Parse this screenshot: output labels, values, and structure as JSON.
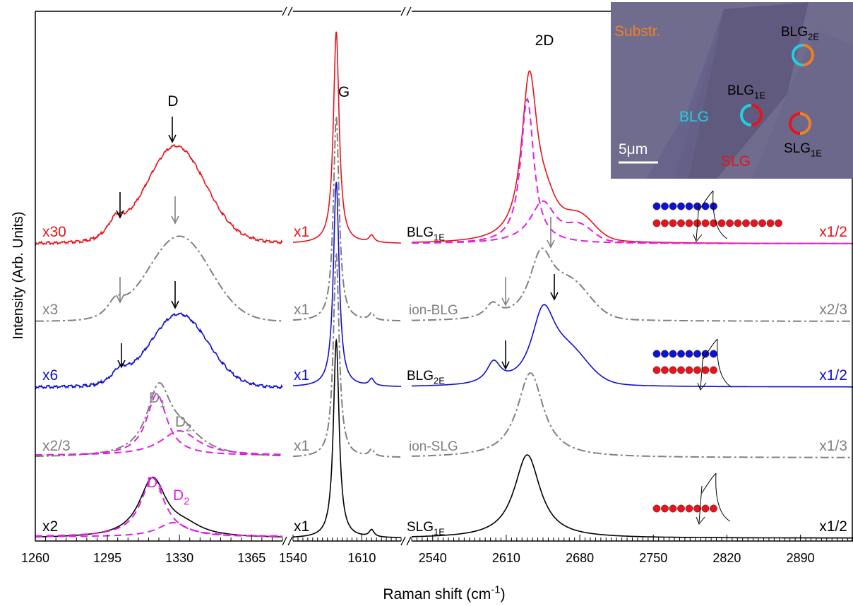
{
  "chart_data": {
    "type": "line",
    "title": "",
    "xlabel": "Raman shift (cm",
    "xlabel_sup": "-1",
    "xlabel_close": ")",
    "ylabel": "Intensity (Arb. Units)",
    "colors": {
      "red": "#e8131b",
      "gray": "#808080",
      "blue": "#1010d0",
      "black": "#000000",
      "magenta": "#e020e0",
      "orange": "#f08020",
      "cyan": "#20d0e0",
      "inset_bg": "#6f6c8e"
    },
    "x_segments": [
      {
        "range": [
          1260,
          1380
        ],
        "ticks": [
          "1260",
          "1295",
          "1330",
          "1365"
        ]
      },
      {
        "range": [
          1540,
          1650
        ],
        "ticks": [
          "1540",
          "1610"
        ]
      },
      {
        "range": [
          2520,
          2940
        ],
        "ticks": [
          "2540",
          "2610",
          "2680",
          "2750",
          "2820",
          "2890"
        ]
      }
    ],
    "peak_labels": {
      "D": "D",
      "G": "G",
      "2D": "2D"
    },
    "series": [
      {
        "key": "slg1e",
        "label": "SLG",
        "label_sub": "1E",
        "style": "solid",
        "color": "black",
        "scales": [
          "x2",
          "x1",
          "x1/2"
        ]
      },
      {
        "key": "ionslg",
        "label": "ion-SLG",
        "label_sub": "",
        "style": "dashdot",
        "color": "gray",
        "scales": [
          "x2/3",
          "x1",
          "x1/3"
        ]
      },
      {
        "key": "blg2e",
        "label": "BLG",
        "label_sub": "2E",
        "style": "solid",
        "color": "blue",
        "scales": [
          "x6",
          "x1",
          "x1/2"
        ]
      },
      {
        "key": "ionblg",
        "label": "ion-BLG",
        "label_sub": "",
        "style": "dashdot",
        "color": "gray",
        "scales": [
          "x3",
          "x1",
          "x2/3"
        ]
      },
      {
        "key": "blg1e",
        "label": "BLG",
        "label_sub": "1E",
        "style": "solid",
        "color": "red",
        "scales": [
          "x30",
          "x1",
          "x1/2"
        ]
      }
    ],
    "component_labels": [
      {
        "text": "D",
        "sub": "1",
        "color": "gray"
      },
      {
        "text": "D",
        "sub": "2",
        "color": "gray"
      },
      {
        "text": "D",
        "sub": "1",
        "color": "magenta"
      },
      {
        "text": "D",
        "sub": "2",
        "color": "magenta"
      }
    ],
    "peak_positions": {
      "D_SLG1E": 1318,
      "D_BLG": 1329,
      "G": 1584,
      "2D_SLG": 2630,
      "2D_BLG1E_main": 2632,
      "2D_BLG2E_main": 2645,
      "2D_side": 2600
    }
  },
  "inset": {
    "labels": [
      {
        "text": "Substr.",
        "sub": "",
        "color": "orange"
      },
      {
        "text": "BLG",
        "sub": "2E",
        "color": "black"
      },
      {
        "text": "BLG",
        "sub": "1E",
        "color": "black"
      },
      {
        "text": "BLG",
        "sub": "",
        "color": "cyan"
      },
      {
        "text": "SLG",
        "sub": "1E",
        "color": "black"
      },
      {
        "text": "SLG",
        "sub": "",
        "color": "red"
      }
    ],
    "scalebar": "5μm"
  }
}
